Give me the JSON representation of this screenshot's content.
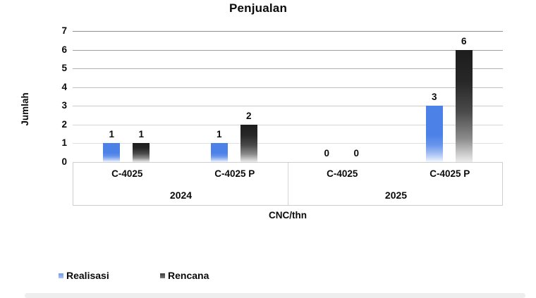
{
  "title": "Penjualan",
  "chart_data": {
    "type": "bar",
    "title": "Penjualan",
    "xlabel": "CNC/thn",
    "ylabel": "Jumlah",
    "ylim": [
      0,
      7
    ],
    "y_ticks": [
      0,
      1,
      2,
      3,
      4,
      5,
      6,
      7
    ],
    "grid": true,
    "bar_data_labels": true,
    "legend_position": "bottom-left",
    "category_groups": [
      {
        "year": "2024",
        "items": [
          "C-4025",
          "C-4025 P"
        ]
      },
      {
        "year": "2025",
        "items": [
          "C-4025",
          "C-4025 P"
        ]
      }
    ],
    "categories": [
      "C-4025",
      "C-4025 P",
      "C-4025",
      "C-4025 P"
    ],
    "series": [
      {
        "name": "Realisasi",
        "color": "#4c81e8",
        "values": [
          1,
          1,
          0,
          3
        ]
      },
      {
        "name": "Rencana",
        "color": "#262626",
        "values": [
          1,
          2,
          0,
          6
        ]
      }
    ]
  },
  "colors": {
    "realisasi_blue": "#4c81e8",
    "rencana_dark": "#262626",
    "gridline_top": "#8f8f8f",
    "gridline_bottom": "#dfdfdf",
    "axis_box_border": "#cfcfcf"
  }
}
